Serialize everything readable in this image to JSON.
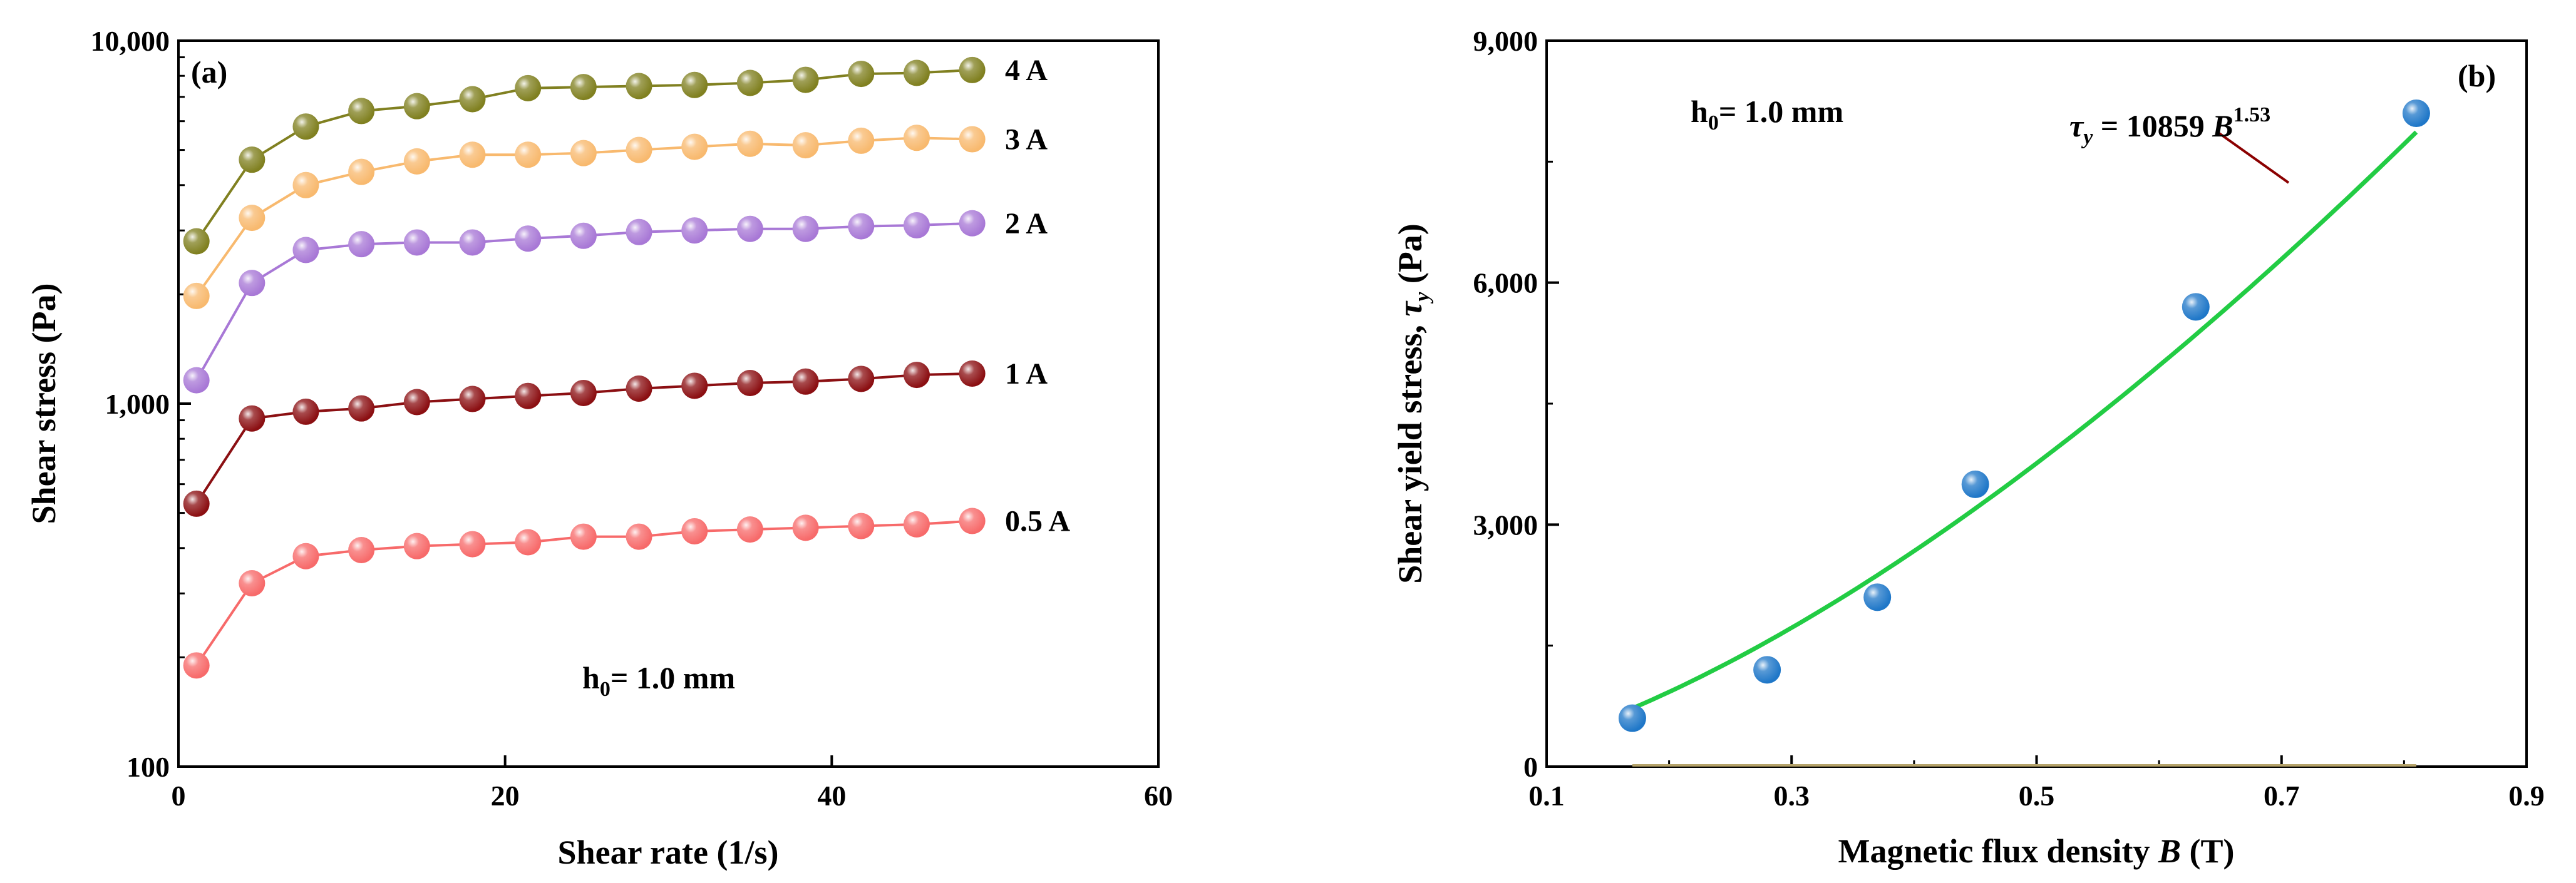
{
  "chart_data": [
    {
      "panel": "(a)",
      "type": "line",
      "xlabel": "Shear rate (1/s)",
      "ylabel": "Shear stress  (Pa)",
      "xlim": [
        0,
        60
      ],
      "ylim": [
        100,
        10000
      ],
      "yscale": "log",
      "x_ticks": [
        0,
        20,
        40,
        60
      ],
      "y_ticks": [
        100,
        1000,
        10000
      ],
      "x_tick_labels": [
        "0",
        "20",
        "40",
        "60"
      ],
      "y_tick_labels": [
        "100",
        "1,000",
        "10,000"
      ],
      "annotation": {
        "main": "h",
        "sub": "0",
        "rest": "= 1.0 mm"
      },
      "x": [
        1.1,
        4.5,
        7.8,
        11.2,
        14.6,
        18.0,
        21.4,
        24.8,
        28.2,
        31.6,
        35.0,
        38.4,
        41.8,
        45.2,
        48.6
      ],
      "series": [
        {
          "name": "4 A",
          "color": "#808020",
          "values": [
            2800,
            4700,
            5800,
            6400,
            6600,
            6900,
            7400,
            7450,
            7500,
            7550,
            7650,
            7800,
            8100,
            8150,
            8300
          ]
        },
        {
          "name": "3 A",
          "color": "#f8b96e",
          "values": [
            1980,
            3250,
            4000,
            4350,
            4650,
            4850,
            4850,
            4900,
            5000,
            5100,
            5200,
            5150,
            5300,
            5400,
            5350
          ]
        },
        {
          "name": "2 A",
          "color": "#a878d6",
          "values": [
            1160,
            2150,
            2650,
            2750,
            2780,
            2780,
            2850,
            2900,
            2970,
            3000,
            3030,
            3030,
            3080,
            3100,
            3140
          ]
        },
        {
          "name": "1 A",
          "color": "#8b0f12",
          "values": [
            530,
            910,
            950,
            970,
            1010,
            1030,
            1050,
            1070,
            1100,
            1120,
            1140,
            1150,
            1170,
            1200,
            1210
          ]
        },
        {
          "name": "0.5 A",
          "color": "#f76a6a",
          "values": [
            190,
            320,
            380,
            395,
            405,
            410,
            415,
            430,
            430,
            445,
            450,
            455,
            460,
            465,
            475
          ]
        }
      ]
    },
    {
      "panel": "(b)",
      "type": "scatter",
      "xlabel": {
        "main": "Magnetic flux density ",
        "var": "B",
        "unit": " (T)"
      },
      "ylabel": {
        "main": "Shear yield stress, ",
        "var": "τ",
        "sub": "y",
        "unit": " (Pa)"
      },
      "xlim": [
        0.1,
        0.9
      ],
      "ylim": [
        0,
        9000
      ],
      "x_ticks": [
        0.1,
        0.3,
        0.5,
        0.7,
        0.9
      ],
      "y_ticks": [
        0,
        3000,
        6000,
        9000
      ],
      "x_tick_labels": [
        "0.1",
        "0.3",
        "0.5",
        "0.7",
        "0.9"
      ],
      "y_tick_labels": [
        "0",
        "3,000",
        "6,000",
        "9,000"
      ],
      "annotation": {
        "main": "h",
        "sub": "0",
        "rest": "= 1.0 mm"
      },
      "points": {
        "x": [
          0.17,
          0.28,
          0.37,
          0.45,
          0.63,
          0.81
        ],
        "y": [
          600,
          1200,
          2100,
          3500,
          5700,
          8100
        ],
        "color": "#1f77c8"
      },
      "fit": {
        "coef": 10859,
        "exponent": 1.53,
        "x_range": [
          0.17,
          0.81
        ],
        "color": "#22cc44",
        "label": {
          "tau": "τ",
          "sub": "y",
          "eq": " = 10859 ",
          "var": "B",
          "exp": "1.53"
        }
      }
    }
  ]
}
